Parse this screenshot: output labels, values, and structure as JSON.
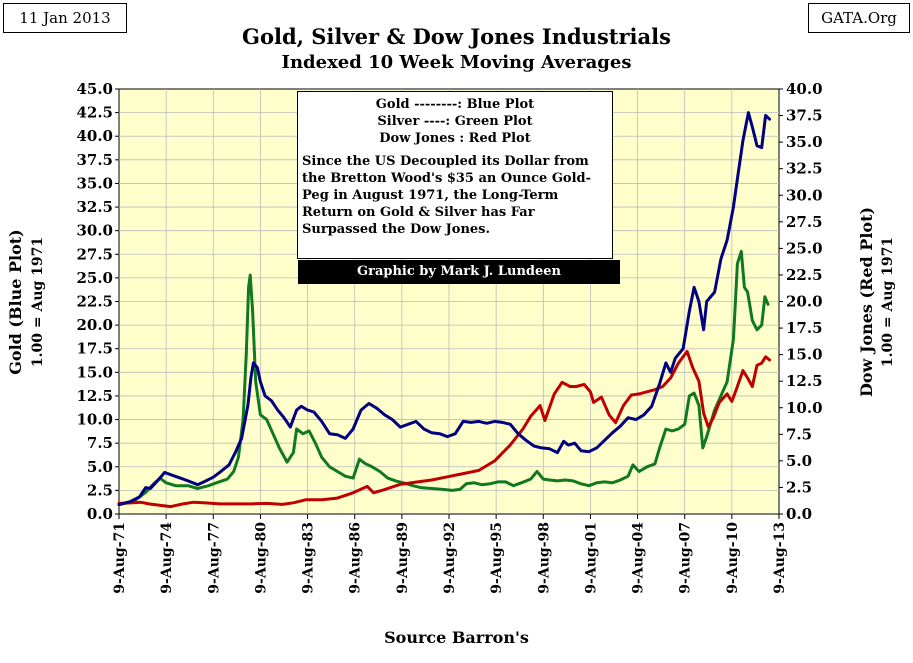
{
  "header": {
    "date": "11 Jan 2013",
    "source_tag": "GATA.Org",
    "title": "Gold, Silver & Dow Jones Industrials",
    "subtitle": "Indexed 10 Week Moving Averages"
  },
  "legend": {
    "lines": [
      "Gold --------: Blue Plot",
      "Silver ----: Green Plot",
      "Dow Jones  : Red Plot"
    ],
    "note": "Since the US Decoupled its Dollar from the Bretton Wood's $35 an Ounce Gold-Peg in August 1971, the Long-Term Return on Gold & Silver has Far Surpassed the Dow Jones.",
    "credit": "Graphic by Mark J. Lundeen"
  },
  "footer": {
    "source": "Source Barron's"
  },
  "colors": {
    "gold": "#000080",
    "silver": "#107820",
    "dow": "#c00000",
    "plot_bg": "#ffffcc",
    "grid": "#bbbbbb"
  },
  "chart_data": {
    "type": "line",
    "x_ticks": [
      "9-Aug-71",
      "9-Aug-74",
      "9-Aug-77",
      "9-Aug-80",
      "9-Aug-83",
      "9-Aug-86",
      "9-Aug-89",
      "9-Aug-92",
      "9-Aug-95",
      "9-Aug-98",
      "9-Aug-01",
      "9-Aug-04",
      "9-Aug-07",
      "9-Aug-10",
      "9-Aug-13"
    ],
    "x_range": [
      1971.6,
      2013.6
    ],
    "ylabel_left": "Gold (Blue Plot)",
    "ylabel_left_sub": "1.00 = Aug 1971",
    "ylabel_right": "Dow Jones (Red Plot)",
    "ylabel_right_sub": "1.00 = Aug 1971",
    "ylim_left": [
      0,
      45
    ],
    "ylim_right": [
      0,
      40
    ],
    "y_ticks_left": [
      "0.0",
      "2.5",
      "5.0",
      "7.5",
      "10.0",
      "12.5",
      "15.0",
      "17.5",
      "20.0",
      "22.5",
      "25.0",
      "27.5",
      "30.0",
      "32.5",
      "35.0",
      "37.5",
      "40.0",
      "42.5",
      "45.0"
    ],
    "y_ticks_right": [
      "0.0",
      "2.5",
      "5.0",
      "7.5",
      "10.0",
      "12.5",
      "15.0",
      "17.5",
      "20.0",
      "22.5",
      "25.0",
      "27.5",
      "30.0",
      "32.5",
      "35.0",
      "37.5",
      "40.0"
    ],
    "grid": true,
    "series": [
      {
        "name": "Gold",
        "axis": "left",
        "color": "#000080",
        "points": [
          [
            1971.6,
            1.0
          ],
          [
            1972.3,
            1.3
          ],
          [
            1972.9,
            1.8
          ],
          [
            1973.3,
            2.8
          ],
          [
            1973.6,
            2.7
          ],
          [
            1974.1,
            3.6
          ],
          [
            1974.5,
            4.4
          ],
          [
            1975.0,
            4.1
          ],
          [
            1975.5,
            3.8
          ],
          [
            1976.0,
            3.5
          ],
          [
            1976.6,
            3.1
          ],
          [
            1977.0,
            3.4
          ],
          [
            1977.6,
            3.9
          ],
          [
            1978.0,
            4.4
          ],
          [
            1978.6,
            5.2
          ],
          [
            1979.0,
            6.5
          ],
          [
            1979.4,
            8.0
          ],
          [
            1979.8,
            11.5
          ],
          [
            1980.0,
            14.5
          ],
          [
            1980.15,
            16.0
          ],
          [
            1980.4,
            15.5
          ],
          [
            1980.6,
            14.0
          ],
          [
            1980.9,
            12.5
          ],
          [
            1981.3,
            12.0
          ],
          [
            1981.7,
            11.0
          ],
          [
            1982.1,
            10.2
          ],
          [
            1982.5,
            9.2
          ],
          [
            1982.9,
            11.0
          ],
          [
            1983.2,
            11.4
          ],
          [
            1983.6,
            11.0
          ],
          [
            1984.0,
            10.8
          ],
          [
            1984.5,
            9.8
          ],
          [
            1985.0,
            8.5
          ],
          [
            1985.5,
            8.4
          ],
          [
            1986.0,
            8.0
          ],
          [
            1986.5,
            9.0
          ],
          [
            1987.0,
            11.0
          ],
          [
            1987.5,
            11.7
          ],
          [
            1988.0,
            11.2
          ],
          [
            1988.5,
            10.5
          ],
          [
            1989.0,
            10.0
          ],
          [
            1989.5,
            9.2
          ],
          [
            1990.0,
            9.5
          ],
          [
            1990.5,
            9.8
          ],
          [
            1991.0,
            9.0
          ],
          [
            1991.5,
            8.6
          ],
          [
            1992.0,
            8.5
          ],
          [
            1992.5,
            8.2
          ],
          [
            1993.0,
            8.5
          ],
          [
            1993.5,
            9.8
          ],
          [
            1994.0,
            9.7
          ],
          [
            1994.5,
            9.8
          ],
          [
            1995.0,
            9.6
          ],
          [
            1995.5,
            9.8
          ],
          [
            1996.0,
            9.7
          ],
          [
            1996.5,
            9.5
          ],
          [
            1997.0,
            8.5
          ],
          [
            1997.5,
            7.8
          ],
          [
            1998.0,
            7.2
          ],
          [
            1998.5,
            7.0
          ],
          [
            1999.0,
            6.9
          ],
          [
            1999.5,
            6.5
          ],
          [
            1999.9,
            7.7
          ],
          [
            2000.2,
            7.3
          ],
          [
            2000.6,
            7.5
          ],
          [
            2001.0,
            6.7
          ],
          [
            2001.5,
            6.6
          ],
          [
            2002.0,
            7.0
          ],
          [
            2002.5,
            7.8
          ],
          [
            2003.0,
            8.6
          ],
          [
            2003.5,
            9.3
          ],
          [
            2004.0,
            10.2
          ],
          [
            2004.5,
            10.0
          ],
          [
            2005.0,
            10.5
          ],
          [
            2005.5,
            11.4
          ],
          [
            2006.0,
            13.8
          ],
          [
            2006.4,
            16.0
          ],
          [
            2006.7,
            15.0
          ],
          [
            2007.0,
            16.5
          ],
          [
            2007.5,
            17.5
          ],
          [
            2007.9,
            21.5
          ],
          [
            2008.2,
            24.0
          ],
          [
            2008.5,
            22.5
          ],
          [
            2008.8,
            19.5
          ],
          [
            2009.0,
            22.5
          ],
          [
            2009.5,
            23.5
          ],
          [
            2009.9,
            27.0
          ],
          [
            2010.3,
            29.0
          ],
          [
            2010.7,
            32.5
          ],
          [
            2011.0,
            36.0
          ],
          [
            2011.3,
            39.5
          ],
          [
            2011.65,
            42.5
          ],
          [
            2011.9,
            41.0
          ],
          [
            2012.2,
            39.0
          ],
          [
            2012.5,
            38.8
          ],
          [
            2012.75,
            42.2
          ],
          [
            2013.0,
            41.8
          ]
        ]
      },
      {
        "name": "Silver",
        "axis": "left",
        "color": "#107820",
        "points": [
          [
            1971.6,
            1.0
          ],
          [
            1972.5,
            1.3
          ],
          [
            1973.3,
            2.3
          ],
          [
            1973.8,
            3.2
          ],
          [
            1974.2,
            3.8
          ],
          [
            1974.6,
            3.3
          ],
          [
            1975.2,
            3.0
          ],
          [
            1976.0,
            3.0
          ],
          [
            1976.6,
            2.7
          ],
          [
            1977.3,
            3.0
          ],
          [
            1977.8,
            3.3
          ],
          [
            1978.5,
            3.7
          ],
          [
            1978.9,
            4.5
          ],
          [
            1979.2,
            6.0
          ],
          [
            1979.5,
            10.0
          ],
          [
            1979.7,
            17.0
          ],
          [
            1979.85,
            24.0
          ],
          [
            1979.95,
            25.3
          ],
          [
            1980.1,
            21.5
          ],
          [
            1980.3,
            14.0
          ],
          [
            1980.6,
            10.5
          ],
          [
            1981.0,
            10.0
          ],
          [
            1981.4,
            8.5
          ],
          [
            1981.8,
            7.0
          ],
          [
            1982.3,
            5.5
          ],
          [
            1982.7,
            6.5
          ],
          [
            1982.9,
            9.0
          ],
          [
            1983.3,
            8.5
          ],
          [
            1983.7,
            8.8
          ],
          [
            1984.1,
            7.5
          ],
          [
            1984.5,
            6.0
          ],
          [
            1985.0,
            5.0
          ],
          [
            1985.5,
            4.5
          ],
          [
            1986.0,
            4.0
          ],
          [
            1986.5,
            3.8
          ],
          [
            1986.9,
            5.8
          ],
          [
            1987.3,
            5.3
          ],
          [
            1987.7,
            5.0
          ],
          [
            1988.2,
            4.5
          ],
          [
            1988.7,
            3.8
          ],
          [
            1989.2,
            3.5
          ],
          [
            1989.7,
            3.3
          ],
          [
            1990.3,
            3.0
          ],
          [
            1990.8,
            2.8
          ],
          [
            1991.5,
            2.7
          ],
          [
            1992.2,
            2.6
          ],
          [
            1992.8,
            2.5
          ],
          [
            1993.3,
            2.6
          ],
          [
            1993.7,
            3.2
          ],
          [
            1994.2,
            3.3
          ],
          [
            1994.7,
            3.1
          ],
          [
            1995.2,
            3.2
          ],
          [
            1995.7,
            3.4
          ],
          [
            1996.2,
            3.4
          ],
          [
            1996.7,
            3.0
          ],
          [
            1997.2,
            3.3
          ],
          [
            1997.8,
            3.7
          ],
          [
            1998.2,
            4.5
          ],
          [
            1998.6,
            3.7
          ],
          [
            1999.0,
            3.6
          ],
          [
            1999.5,
            3.5
          ],
          [
            2000.0,
            3.6
          ],
          [
            2000.5,
            3.5
          ],
          [
            2001.0,
            3.2
          ],
          [
            2001.5,
            3.0
          ],
          [
            2002.0,
            3.3
          ],
          [
            2002.5,
            3.4
          ],
          [
            2003.0,
            3.3
          ],
          [
            2003.5,
            3.6
          ],
          [
            2004.0,
            4.0
          ],
          [
            2004.3,
            5.2
          ],
          [
            2004.7,
            4.5
          ],
          [
            2005.2,
            5.0
          ],
          [
            2005.7,
            5.3
          ],
          [
            2006.0,
            7.0
          ],
          [
            2006.4,
            9.0
          ],
          [
            2006.8,
            8.8
          ],
          [
            2007.2,
            9.0
          ],
          [
            2007.6,
            9.5
          ],
          [
            2007.9,
            12.5
          ],
          [
            2008.2,
            12.8
          ],
          [
            2008.5,
            11.5
          ],
          [
            2008.75,
            7.0
          ],
          [
            2009.0,
            8.2
          ],
          [
            2009.5,
            11.0
          ],
          [
            2009.9,
            12.5
          ],
          [
            2010.3,
            14.0
          ],
          [
            2010.7,
            18.5
          ],
          [
            2010.95,
            26.5
          ],
          [
            2011.2,
            27.8
          ],
          [
            2011.4,
            24.0
          ],
          [
            2011.6,
            23.5
          ],
          [
            2011.9,
            20.5
          ],
          [
            2012.2,
            19.5
          ],
          [
            2012.5,
            20.0
          ],
          [
            2012.7,
            23.0
          ],
          [
            2012.9,
            22.2
          ]
        ]
      },
      {
        "name": "Dow Jones",
        "axis": "right",
        "color": "#c00000",
        "points": [
          [
            1971.6,
            1.0
          ],
          [
            1972.5,
            1.05
          ],
          [
            1973.0,
            1.1
          ],
          [
            1973.5,
            0.95
          ],
          [
            1974.3,
            0.8
          ],
          [
            1974.9,
            0.7
          ],
          [
            1975.5,
            0.9
          ],
          [
            1976.3,
            1.1
          ],
          [
            1977.0,
            1.05
          ],
          [
            1978.0,
            0.95
          ],
          [
            1979.0,
            0.95
          ],
          [
            1980.0,
            0.95
          ],
          [
            1981.0,
            1.0
          ],
          [
            1982.0,
            0.9
          ],
          [
            1982.7,
            1.05
          ],
          [
            1983.5,
            1.35
          ],
          [
            1984.5,
            1.35
          ],
          [
            1985.5,
            1.5
          ],
          [
            1986.5,
            2.0
          ],
          [
            1987.4,
            2.6
          ],
          [
            1987.8,
            2.0
          ],
          [
            1988.5,
            2.3
          ],
          [
            1989.5,
            2.8
          ],
          [
            1990.5,
            3.0
          ],
          [
            1991.5,
            3.2
          ],
          [
            1992.5,
            3.5
          ],
          [
            1993.5,
            3.8
          ],
          [
            1994.5,
            4.1
          ],
          [
            1995.5,
            5.0
          ],
          [
            1996.5,
            6.5
          ],
          [
            1997.3,
            8.0
          ],
          [
            1997.8,
            9.2
          ],
          [
            1998.4,
            10.2
          ],
          [
            1998.7,
            8.8
          ],
          [
            1999.3,
            11.3
          ],
          [
            1999.8,
            12.4
          ],
          [
            2000.3,
            12.0
          ],
          [
            2000.7,
            12.0
          ],
          [
            2001.2,
            12.2
          ],
          [
            2001.6,
            11.5
          ],
          [
            2001.8,
            10.5
          ],
          [
            2002.3,
            11.0
          ],
          [
            2002.8,
            9.3
          ],
          [
            2003.2,
            8.6
          ],
          [
            2003.7,
            10.2
          ],
          [
            2004.2,
            11.2
          ],
          [
            2004.7,
            11.3
          ],
          [
            2005.2,
            11.5
          ],
          [
            2005.7,
            11.7
          ],
          [
            2006.2,
            12.0
          ],
          [
            2006.7,
            12.8
          ],
          [
            2007.2,
            14.2
          ],
          [
            2007.75,
            15.3
          ],
          [
            2008.1,
            13.8
          ],
          [
            2008.5,
            12.5
          ],
          [
            2008.8,
            9.5
          ],
          [
            2009.1,
            8.2
          ],
          [
            2009.4,
            9.0
          ],
          [
            2009.8,
            10.5
          ],
          [
            2010.3,
            11.3
          ],
          [
            2010.6,
            10.6
          ],
          [
            2010.9,
            11.8
          ],
          [
            2011.3,
            13.5
          ],
          [
            2011.6,
            12.8
          ],
          [
            2011.9,
            12.0
          ],
          [
            2012.2,
            14.0
          ],
          [
            2012.5,
            14.2
          ],
          [
            2012.75,
            14.8
          ],
          [
            2013.0,
            14.5
          ]
        ]
      }
    ]
  }
}
